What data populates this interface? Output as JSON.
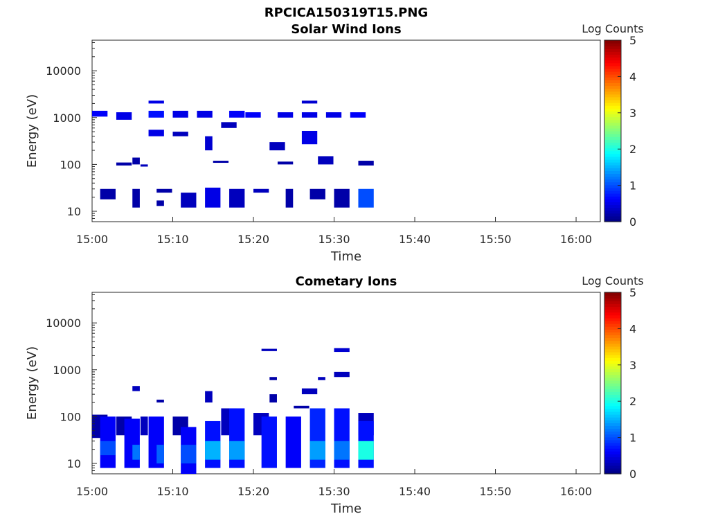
{
  "figure_title": "RPCICA150319T15.PNG",
  "chart_data": [
    {
      "type": "heatmap",
      "title": "Solar Wind Ions",
      "xlabel": "Time",
      "ylabel": "Energy (eV)",
      "yscale": "log",
      "xlim": [
        "15:00",
        "16:03"
      ],
      "ylim": [
        6,
        45000
      ],
      "x_ticks": [
        "15:00",
        "15:10",
        "15:20",
        "15:30",
        "15:40",
        "15:50",
        "16:00"
      ],
      "y_ticks": [
        "10",
        "100",
        "1000",
        "10000"
      ],
      "colorbar": {
        "label": "Log Counts",
        "range": [
          0,
          5
        ],
        "ticks": [
          "0",
          "1",
          "2",
          "3",
          "4",
          "5"
        ],
        "colormap": "jet"
      },
      "cells": [
        {
          "t0": "15:00",
          "t1": "15:01",
          "e0": 1050,
          "e1": 1400,
          "v": 0.6
        },
        {
          "t0": "15:01",
          "t1": "15:02",
          "e0": 18,
          "e1": 30,
          "v": 0.2
        },
        {
          "t0": "15:03",
          "t1": "15:04",
          "e0": 900,
          "e1": 1300,
          "v": 0.5
        },
        {
          "t0": "15:03",
          "t1": "15:04",
          "e0": 95,
          "e1": 110,
          "v": 0.2
        },
        {
          "t0": "15:05",
          "t1": "15:05",
          "e0": 12,
          "e1": 30,
          "v": 0.2
        },
        {
          "t0": "15:05",
          "t1": "15:05",
          "e0": 100,
          "e1": 140,
          "v": 0.2
        },
        {
          "t0": "15:06",
          "t1": "15:06",
          "e0": 90,
          "e1": 100,
          "v": 0.3
        },
        {
          "t0": "15:07",
          "t1": "15:08",
          "e0": 1000,
          "e1": 1400,
          "v": 0.7
        },
        {
          "t0": "15:07",
          "t1": "15:08",
          "e0": 2000,
          "e1": 2300,
          "v": 0.5
        },
        {
          "t0": "15:07",
          "t1": "15:08",
          "e0": 400,
          "e1": 550,
          "v": 0.5
        },
        {
          "t0": "15:08",
          "t1": "15:08",
          "e0": 13,
          "e1": 17,
          "v": 0.2
        },
        {
          "t0": "15:08",
          "t1": "15:09",
          "e0": 25,
          "e1": 30,
          "v": 0.2
        },
        {
          "t0": "15:10",
          "t1": "15:11",
          "e0": 1000,
          "e1": 1400,
          "v": 0.5
        },
        {
          "t0": "15:10",
          "t1": "15:11",
          "e0": 400,
          "e1": 500,
          "v": 0.3
        },
        {
          "t0": "15:11",
          "t1": "15:12",
          "e0": 12,
          "e1": 25,
          "v": 0.3
        },
        {
          "t0": "15:13",
          "t1": "15:14",
          "e0": 1000,
          "e1": 1400,
          "v": 0.5
        },
        {
          "t0": "15:14",
          "t1": "15:14",
          "e0": 200,
          "e1": 400,
          "v": 0.4
        },
        {
          "t0": "15:14",
          "t1": "15:15",
          "e0": 12,
          "e1": 32,
          "v": 0.5
        },
        {
          "t0": "15:15",
          "t1": "15:16",
          "e0": 110,
          "e1": 120,
          "v": 0.2
        },
        {
          "t0": "15:16",
          "t1": "15:17",
          "e0": 600,
          "e1": 800,
          "v": 0.3
        },
        {
          "t0": "15:17",
          "t1": "15:18",
          "e0": 1000,
          "e1": 1400,
          "v": 0.6
        },
        {
          "t0": "15:17",
          "t1": "15:18",
          "e0": 12,
          "e1": 30,
          "v": 0.3
        },
        {
          "t0": "15:19",
          "t1": "15:20",
          "e0": 1000,
          "e1": 1300,
          "v": 0.6
        },
        {
          "t0": "15:20",
          "t1": "15:21",
          "e0": 25,
          "e1": 30,
          "v": 0.3
        },
        {
          "t0": "15:22",
          "t1": "15:23",
          "e0": 200,
          "e1": 300,
          "v": 0.3
        },
        {
          "t0": "15:23",
          "t1": "15:24",
          "e0": 1000,
          "e1": 1300,
          "v": 0.5
        },
        {
          "t0": "15:23",
          "t1": "15:24",
          "e0": 100,
          "e1": 115,
          "v": 0.2
        },
        {
          "t0": "15:24",
          "t1": "15:24",
          "e0": 12,
          "e1": 30,
          "v": 0.2
        },
        {
          "t0": "15:26",
          "t1": "15:27",
          "e0": 1000,
          "e1": 1300,
          "v": 0.5
        },
        {
          "t0": "15:26",
          "t1": "15:27",
          "e0": 2000,
          "e1": 2300,
          "v": 0.4
        },
        {
          "t0": "15:26",
          "t1": "15:27",
          "e0": 270,
          "e1": 520,
          "v": 0.5
        },
        {
          "t0": "15:27",
          "t1": "15:28",
          "e0": 18,
          "e1": 30,
          "v": 0.2
        },
        {
          "t0": "15:28",
          "t1": "15:29",
          "e0": 100,
          "e1": 150,
          "v": 0.3
        },
        {
          "t0": "15:29",
          "t1": "15:30",
          "e0": 1000,
          "e1": 1300,
          "v": 0.5
        },
        {
          "t0": "15:30",
          "t1": "15:31",
          "e0": 12,
          "e1": 30,
          "v": 0.2
        },
        {
          "t0": "15:32",
          "t1": "15:33",
          "e0": 1000,
          "e1": 1300,
          "v": 0.6
        },
        {
          "t0": "15:33",
          "t1": "15:34",
          "e0": 95,
          "e1": 120,
          "v": 0.2
        },
        {
          "t0": "15:33",
          "t1": "15:34",
          "e0": 12,
          "e1": 30,
          "v": 1.0
        }
      ]
    },
    {
      "type": "heatmap",
      "title": "Cometary Ions",
      "xlabel": "Time",
      "ylabel": "Energy (eV)",
      "yscale": "log",
      "xlim": [
        "15:00",
        "16:03"
      ],
      "ylim": [
        6,
        45000
      ],
      "x_ticks": [
        "15:00",
        "15:10",
        "15:20",
        "15:30",
        "15:40",
        "15:50",
        "16:00"
      ],
      "y_ticks": [
        "10",
        "100",
        "1000",
        "10000"
      ],
      "colorbar": {
        "label": "Log Counts",
        "range": [
          0,
          5
        ],
        "ticks": [
          "0",
          "1",
          "2",
          "3",
          "4",
          "5"
        ],
        "colormap": "jet"
      },
      "cells": [
        {
          "t0": "15:00",
          "t1": "15:01",
          "e0": 35,
          "e1": 110,
          "v": 0.2
        },
        {
          "t0": "15:01",
          "t1": "15:02",
          "e0": 8,
          "e1": 100,
          "v": 0.6
        },
        {
          "t0": "15:01",
          "t1": "15:02",
          "e0": 15,
          "e1": 30,
          "v": 1.0
        },
        {
          "t0": "15:03",
          "t1": "15:04",
          "e0": 40,
          "e1": 100,
          "v": 0.2
        },
        {
          "t0": "15:04",
          "t1": "15:05",
          "e0": 8,
          "e1": 90,
          "v": 0.6
        },
        {
          "t0": "15:05",
          "t1": "15:05",
          "e0": 12,
          "e1": 25,
          "v": 1.2
        },
        {
          "t0": "15:05",
          "t1": "15:05",
          "e0": 350,
          "e1": 450,
          "v": 0.3
        },
        {
          "t0": "15:06",
          "t1": "15:06",
          "e0": 40,
          "e1": 100,
          "v": 0.3
        },
        {
          "t0": "15:07",
          "t1": "15:08",
          "e0": 8,
          "e1": 100,
          "v": 0.6
        },
        {
          "t0": "15:08",
          "t1": "15:08",
          "e0": 10,
          "e1": 25,
          "v": 1.1
        },
        {
          "t0": "15:08",
          "t1": "15:08",
          "e0": 200,
          "e1": 230,
          "v": 0.2
        },
        {
          "t0": "15:10",
          "t1": "15:11",
          "e0": 40,
          "e1": 100,
          "v": 0.2
        },
        {
          "t0": "15:11",
          "t1": "15:12",
          "e0": 6,
          "e1": 60,
          "v": 0.6
        },
        {
          "t0": "15:11",
          "t1": "15:12",
          "e0": 10,
          "e1": 25,
          "v": 1.0
        },
        {
          "t0": "15:14",
          "t1": "15:14",
          "e0": 200,
          "e1": 350,
          "v": 0.3
        },
        {
          "t0": "15:14",
          "t1": "15:15",
          "e0": 8,
          "e1": 80,
          "v": 0.7
        },
        {
          "t0": "15:14",
          "t1": "15:15",
          "e0": 12,
          "e1": 30,
          "v": 1.5
        },
        {
          "t0": "15:16",
          "t1": "15:17",
          "e0": 40,
          "e1": 150,
          "v": 0.3
        },
        {
          "t0": "15:17",
          "t1": "15:18",
          "e0": 8,
          "e1": 150,
          "v": 0.7
        },
        {
          "t0": "15:17",
          "t1": "15:18",
          "e0": 12,
          "e1": 30,
          "v": 1.4
        },
        {
          "t0": "15:20",
          "t1": "15:21",
          "e0": 40,
          "e1": 120,
          "v": 0.3
        },
        {
          "t0": "15:21",
          "t1": "15:22",
          "e0": 8,
          "e1": 100,
          "v": 0.7
        },
        {
          "t0": "15:21",
          "t1": "15:22",
          "e0": 2500,
          "e1": 2800,
          "v": 0.3
        },
        {
          "t0": "15:22",
          "t1": "15:22",
          "e0": 600,
          "e1": 700,
          "v": 0.2
        },
        {
          "t0": "15:22",
          "t1": "15:22",
          "e0": 200,
          "e1": 300,
          "v": 0.2
        },
        {
          "t0": "15:24",
          "t1": "15:25",
          "e0": 8,
          "e1": 100,
          "v": 0.6
        },
        {
          "t0": "15:25",
          "t1": "15:26",
          "e0": 150,
          "e1": 170,
          "v": 0.2
        },
        {
          "t0": "15:26",
          "t1": "15:27",
          "e0": 300,
          "e1": 400,
          "v": 0.3
        },
        {
          "t0": "15:27",
          "t1": "15:28",
          "e0": 8,
          "e1": 150,
          "v": 0.8
        },
        {
          "t0": "15:27",
          "t1": "15:28",
          "e0": 12,
          "e1": 30,
          "v": 1.4
        },
        {
          "t0": "15:28",
          "t1": "15:28",
          "e0": 600,
          "e1": 700,
          "v": 0.3
        },
        {
          "t0": "15:30",
          "t1": "15:31",
          "e0": 8,
          "e1": 150,
          "v": 0.7
        },
        {
          "t0": "15:30",
          "t1": "15:31",
          "e0": 12,
          "e1": 30,
          "v": 1.2
        },
        {
          "t0": "15:30",
          "t1": "15:31",
          "e0": 2400,
          "e1": 2900,
          "v": 0.4
        },
        {
          "t0": "15:30",
          "t1": "15:31",
          "e0": 700,
          "e1": 900,
          "v": 0.3
        },
        {
          "t0": "15:33",
          "t1": "15:34",
          "e0": 40,
          "e1": 120,
          "v": 0.3
        },
        {
          "t0": "15:33",
          "t1": "15:34",
          "e0": 8,
          "e1": 80,
          "v": 0.7
        },
        {
          "t0": "15:33",
          "t1": "15:34",
          "e0": 12,
          "e1": 30,
          "v": 2.0
        }
      ]
    }
  ]
}
